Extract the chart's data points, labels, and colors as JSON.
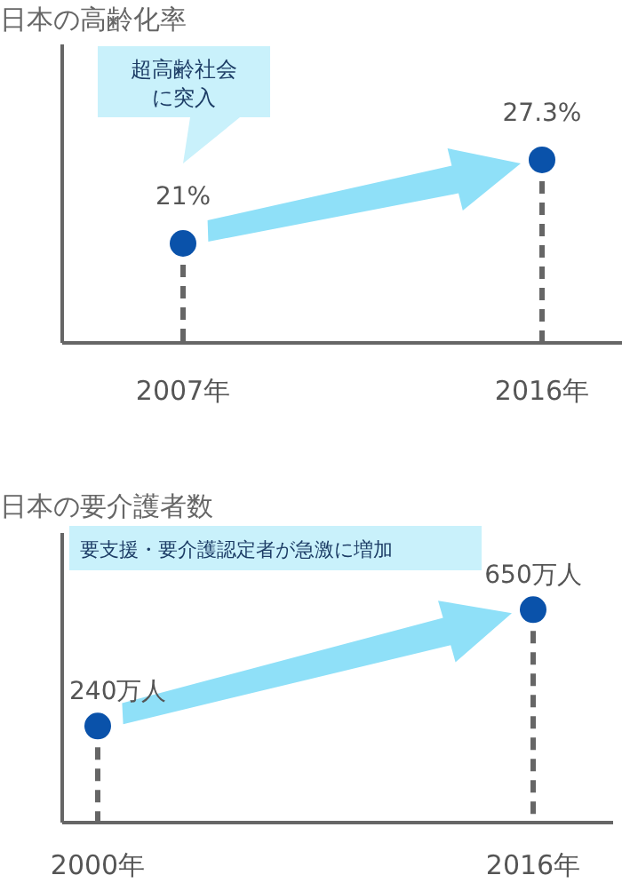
{
  "chart_data": [
    {
      "type": "lollipop",
      "title": "日本の高齢化率",
      "categories": [
        "2007年",
        "2016年"
      ],
      "values": [
        21,
        27.3
      ],
      "value_labels": [
        "21%",
        "27.3%"
      ],
      "color": "#0a52aa",
      "marker": "circle",
      "line_style": "dashed",
      "ylim": [
        13.5,
        36
      ],
      "annotations": [
        "超高齢社会に突入"
      ]
    },
    {
      "type": "lollipop",
      "title": "日本の要介護者数",
      "categories": [
        "2000年",
        "2016年"
      ],
      "values": [
        240,
        650
      ],
      "value_labels": [
        "240万人",
        "650万人"
      ],
      "color": "#0a52aa",
      "marker": "circle",
      "line_style": "dashed",
      "ylim": [
        -100,
        920
      ],
      "annotations": [
        "要支援・要介護認定者が急激に増加"
      ]
    }
  ]
}
